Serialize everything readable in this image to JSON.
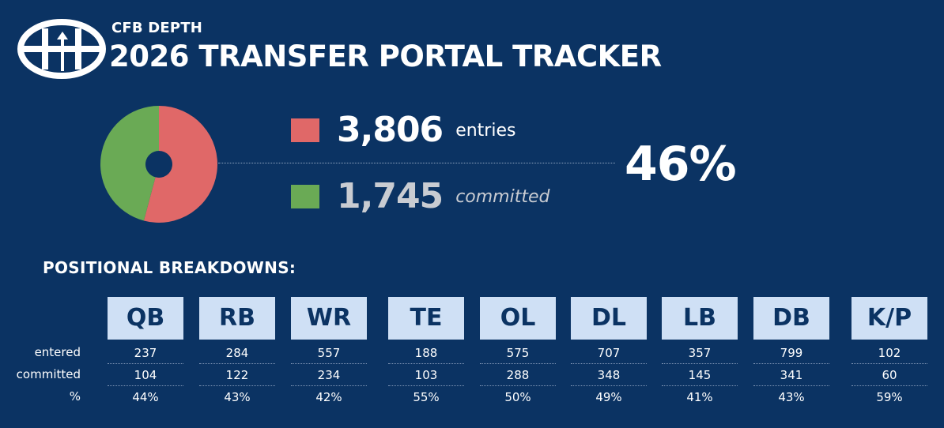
{
  "header": {
    "brand": "CFB DEPTH",
    "title": "2026 TRANSFER PORTAL TRACKER"
  },
  "summary": {
    "entries_value": "3,806",
    "entries_label": "entries",
    "committed_value": "1,745",
    "committed_label": "committed",
    "percent": "46%"
  },
  "colors": {
    "background": "#0b3363",
    "entries": "#e06868",
    "committed": "#6aaa55",
    "position_box": "#cfe0f5"
  },
  "breakdown": {
    "title": "POSITIONAL BREAKDOWNS:",
    "row_labels": {
      "entered": "entered",
      "committed": "committed",
      "percent": "%"
    }
  },
  "chart_data": [
    {
      "type": "pie",
      "labels": [
        "entries",
        "committed"
      ],
      "values": [
        2061,
        1745
      ],
      "colors": [
        "#e06868",
        "#6aaa55"
      ]
    },
    {
      "type": "table",
      "columns": [
        "QB",
        "RB",
        "WR",
        "TE",
        "OL",
        "DL",
        "LB",
        "DB",
        "K/P"
      ],
      "rows": [
        {
          "label": "entered",
          "values": [
            "237",
            "284",
            "557",
            "188",
            "575",
            "707",
            "357",
            "799",
            "102"
          ]
        },
        {
          "label": "committed",
          "values": [
            "104",
            "122",
            "234",
            "103",
            "288",
            "348",
            "145",
            "341",
            "60"
          ]
        },
        {
          "label": "%",
          "values": [
            "44%",
            "43%",
            "42%",
            "55%",
            "50%",
            "49%",
            "41%",
            "43%",
            "59%"
          ]
        }
      ]
    }
  ]
}
